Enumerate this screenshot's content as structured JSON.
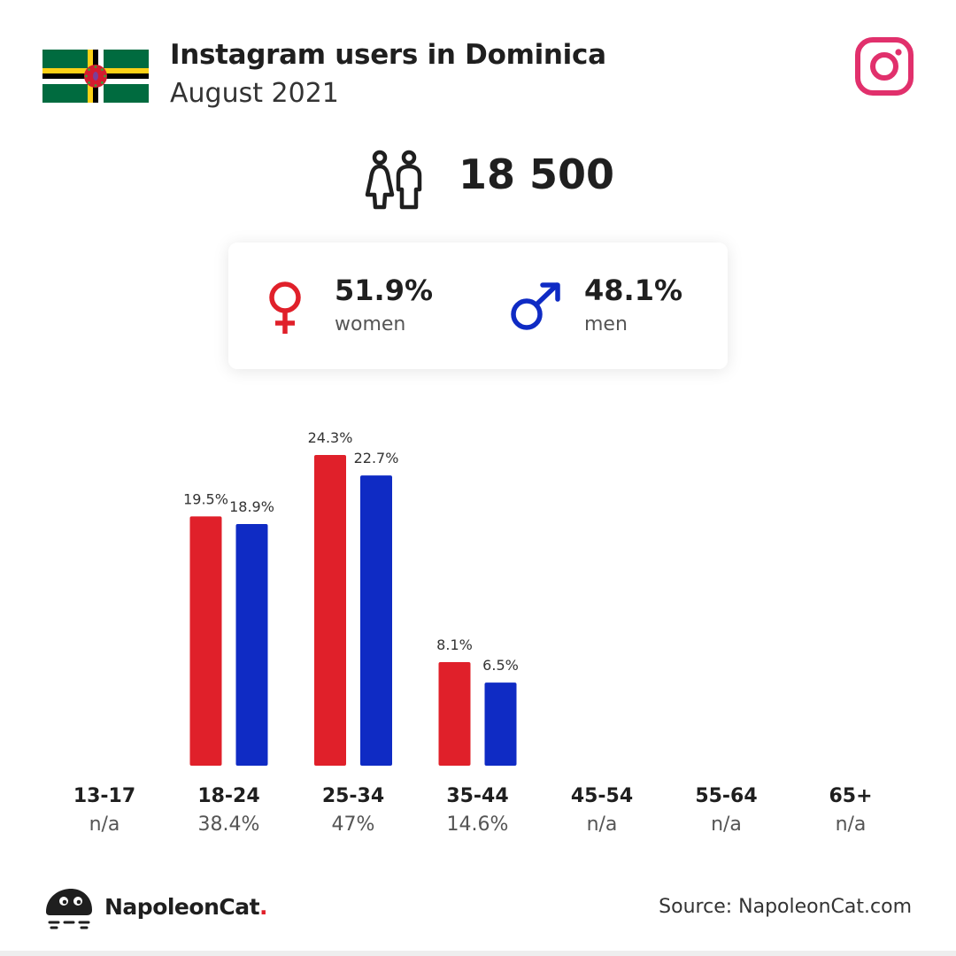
{
  "header": {
    "title": "Instagram users in Dominica",
    "subtitle": "August 2021"
  },
  "total_users": "18 500",
  "gender": {
    "women_pct": "51.9%",
    "women_label": "women",
    "men_pct": "48.1%",
    "men_label": "men"
  },
  "colors": {
    "women": "#e0202a",
    "men": "#0f2bc4",
    "instagram": "#e1306c"
  },
  "icons": [
    "dominica-flag",
    "instagram-icon",
    "people-icon",
    "female-symbol-icon",
    "male-symbol-icon",
    "napoleoncat-logo"
  ],
  "chart_data": {
    "type": "bar",
    "categories": [
      "13-17",
      "18-24",
      "25-34",
      "35-44",
      "45-54",
      "55-64",
      "65+"
    ],
    "totals": [
      "n/a",
      "38.4%",
      "47%",
      "14.6%",
      "n/a",
      "n/a",
      "n/a"
    ],
    "series": [
      {
        "values": [
          null,
          19.5,
          24.3,
          8.1,
          null,
          null,
          null
        ],
        "labels": [
          "",
          "19.5%",
          "24.3%",
          "8.1%",
          "",
          "",
          ""
        ]
      },
      {
        "values": [
          null,
          18.9,
          22.7,
          6.5,
          null,
          null,
          null
        ],
        "labels": [
          "",
          "18.9%",
          "22.7%",
          "6.5%",
          "",
          "",
          ""
        ]
      }
    ],
    "ylim": [
      0,
      24.3
    ]
  },
  "footer": {
    "brand": "NapoleonCat",
    "brand_dot": ".",
    "source": "Source: NapoleonCat.com"
  }
}
